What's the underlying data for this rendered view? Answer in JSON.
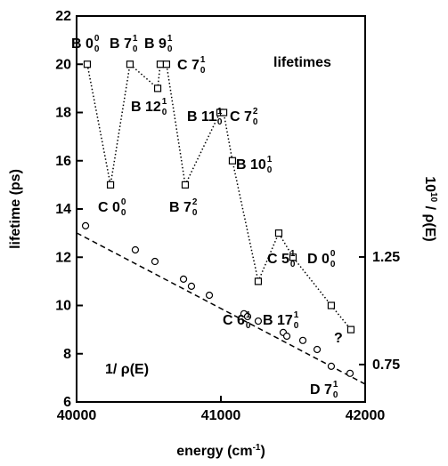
{
  "chart_data": {
    "type": "scatter",
    "xlabel": {
      "text": "energy (cm",
      "sup": "-1",
      "end": ")"
    },
    "ylabel": "lifetime (ps)",
    "y2label": {
      "text": "10",
      "sup": "10",
      "end": " / ρ(E)"
    },
    "xlim": [
      40000,
      42000
    ],
    "xticks": [
      40000,
      41000,
      42000
    ],
    "ylim": [
      6,
      22
    ],
    "yticks": [
      6,
      8,
      10,
      12,
      14,
      16,
      18,
      20,
      22
    ],
    "y2lim": [
      0.576,
      2.37
    ],
    "y2ticks": [
      0.75,
      1.25
    ],
    "series": [
      {
        "name": "lifetimes",
        "color": "#000000",
        "x": [
          40074,
          40235,
          40370,
          40562,
          40580,
          40623,
          40753,
          40994,
          41019,
          41080,
          41259,
          41401,
          41500,
          41765,
          41901
        ],
        "values": [
          20,
          15,
          20,
          19,
          20,
          20,
          15,
          18,
          18,
          16,
          11,
          13,
          12,
          10,
          9
        ]
      },
      {
        "name": "1/ ρ(E)",
        "color": "#000000",
        "axis": "y2",
        "x": [
          40062,
          40407,
          40543,
          40741,
          40796,
          40920,
          41160,
          41185,
          41259,
          41432,
          41457,
          41568,
          41667,
          41765,
          41895
        ],
        "values": [
          1.395,
          1.283,
          1.229,
          1.147,
          1.114,
          1.072,
          0.986,
          0.973,
          0.952,
          0.899,
          0.882,
          0.862,
          0.82,
          0.742,
          0.709
        ]
      }
    ],
    "fit": {
      "axis": "y2",
      "x": [
        40000,
        42000
      ],
      "values": [
        1.362,
        0.659
      ]
    },
    "annotations": [
      {
        "base": "B 0",
        "sub": "0",
        "sup": "0"
      },
      {
        "base": "B 7",
        "sub": "0",
        "sup": "1"
      },
      {
        "base": "B 9",
        "sub": "0",
        "sup": "1"
      },
      {
        "base": "C 7",
        "sub": "0",
        "sup": "1"
      },
      {
        "base": "B 12",
        "sub": "0",
        "sup": "1"
      },
      {
        "base": "B 11",
        "sub": "0",
        "sup": "1"
      },
      {
        "base": "C 7",
        "sub": "0",
        "sup": "2"
      },
      {
        "base": "B 10",
        "sub": "0",
        "sup": "1"
      },
      {
        "base": "C 0",
        "sub": "0",
        "sup": "0"
      },
      {
        "base": "B 7",
        "sub": "0",
        "sup": "2"
      },
      {
        "base": "C 5",
        "sub": "0",
        "sup": "1"
      },
      {
        "base": "D 0",
        "sub": "0",
        "sup": "0"
      },
      {
        "base": "?"
      },
      {
        "base": "C 6",
        "sub": "0",
        "sup": "1"
      },
      {
        "base": "B 17",
        "sub": "0",
        "sup": "1"
      },
      {
        "base": "D 7",
        "sub": "0",
        "sup": "1"
      }
    ]
  }
}
